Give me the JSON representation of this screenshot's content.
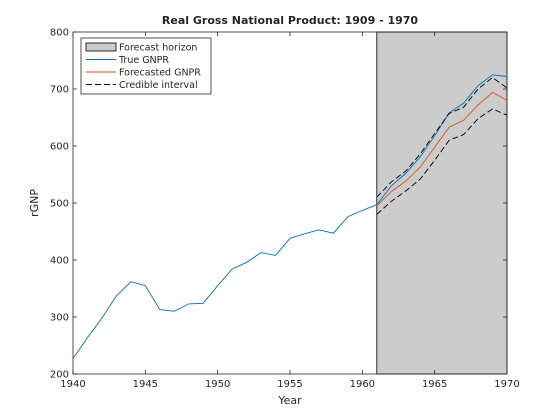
{
  "chart_data": {
    "type": "line",
    "title": "Real Gross National Product: 1909 - 1970",
    "xlabel": "Year",
    "ylabel": "rGNP",
    "xlim": [
      1940,
      1970
    ],
    "ylim": [
      200,
      800
    ],
    "xticks": [
      1940,
      1945,
      1950,
      1955,
      1960,
      1965,
      1970
    ],
    "yticks": [
      200,
      300,
      400,
      500,
      600,
      700,
      800
    ],
    "grid": false,
    "legend_position": "top-left",
    "forecast_horizon": {
      "label": "Forecast horizon",
      "x_start": 1961,
      "x_end": 1970,
      "color": "#cccccc"
    },
    "series": [
      {
        "name": "True GNPR",
        "color": "#0072bd",
        "style": "solid",
        "x": [
          1940,
          1941,
          1942,
          1943,
          1944,
          1945,
          1946,
          1947,
          1948,
          1949,
          1950,
          1951,
          1952,
          1953,
          1954,
          1955,
          1956,
          1957,
          1958,
          1959,
          1960,
          1961,
          1962,
          1963,
          1964,
          1965,
          1966,
          1967,
          1968,
          1969,
          1970
        ],
        "y": [
          227,
          264,
          298,
          337,
          362,
          355,
          313,
          310,
          323,
          324,
          355,
          384,
          396,
          413,
          408,
          438,
          446,
          453,
          447,
          476,
          487,
          497,
          530,
          552,
          581,
          618,
          658,
          675,
          706,
          725,
          722
        ]
      },
      {
        "name": "Forecasted GNPR",
        "color": "#d95319",
        "style": "solid",
        "x": [
          1961,
          1962,
          1963,
          1964,
          1965,
          1966,
          1967,
          1968,
          1969,
          1970
        ],
        "y": [
          495,
          520,
          538,
          563,
          598,
          633,
          645,
          672,
          694,
          680
        ]
      },
      {
        "name": "Credible interval",
        "color": "#000000",
        "style": "dashed",
        "x": [
          1961,
          1962,
          1963,
          1964,
          1965,
          1966,
          1967,
          1968,
          1969,
          1970
        ],
        "y": [
          510,
          537,
          556,
          586,
          622,
          657,
          668,
          700,
          720,
          702
        ]
      },
      {
        "name": "",
        "color": "#000000",
        "style": "dashed",
        "x": [
          1961,
          1962,
          1963,
          1964,
          1965,
          1966,
          1967,
          1968,
          1969,
          1970
        ],
        "y": [
          480,
          503,
          521,
          542,
          575,
          610,
          620,
          648,
          665,
          654
        ]
      }
    ]
  }
}
